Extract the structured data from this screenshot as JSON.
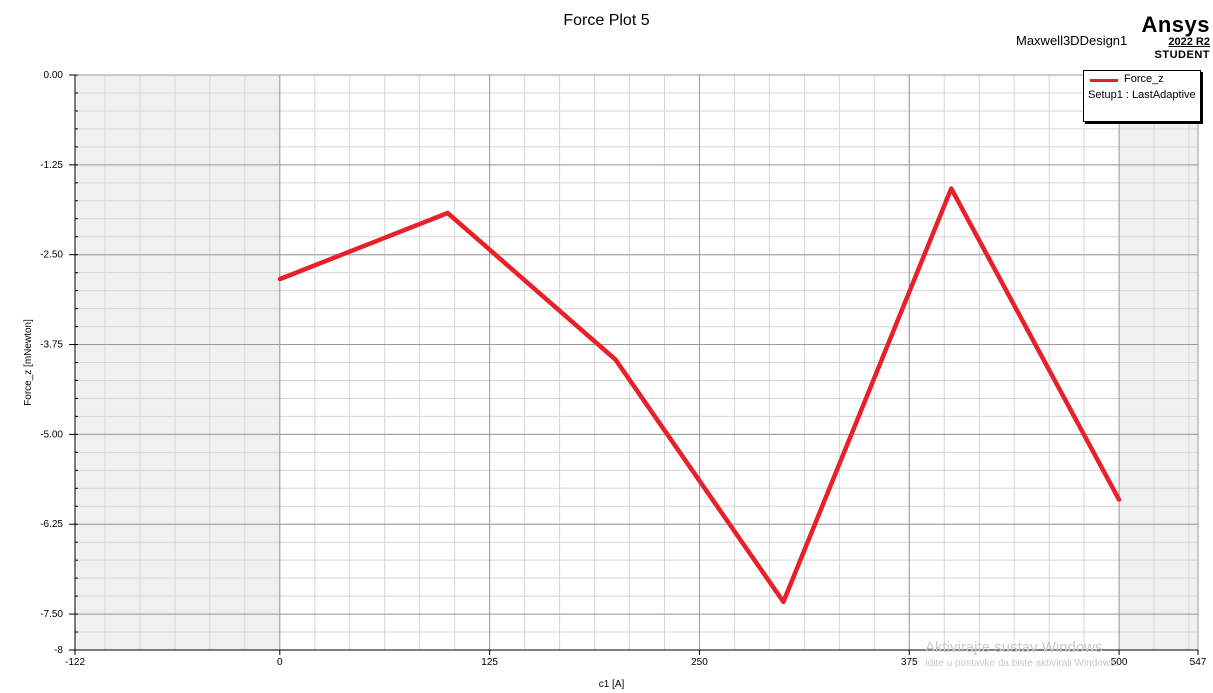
{
  "header": {
    "title": "Force Plot 5",
    "design_name": "Maxwell3DDesign1",
    "brand": "Ansys",
    "version": "2022 R2",
    "license": "STUDENT"
  },
  "legend": {
    "series_name": "Force_z",
    "setup": "Setup1 : LastAdaptive"
  },
  "watermark": {
    "line1": "Aktivirajte sustav Windows",
    "line2": "Idite u postavke da biste aktivirali Windows."
  },
  "chart_data": {
    "type": "line",
    "title": "Force Plot 5",
    "xlabel": "c1 [A]",
    "ylabel": "Force_z [mNewton]",
    "xlim": [
      -122,
      547
    ],
    "ylim": [
      -8,
      0
    ],
    "x_ticks": [
      "-122",
      "0",
      "125",
      "250",
      "375",
      "500",
      "547"
    ],
    "x_tick_values": [
      -122,
      0,
      125,
      250,
      375,
      500,
      547
    ],
    "y_ticks": [
      "0.00",
      "-1.25",
      "-2.50",
      "-3.75",
      "-5.00",
      "-6.25",
      "-7.50",
      "-8"
    ],
    "y_tick_values": [
      0,
      -1.25,
      -2.5,
      -3.75,
      -5,
      -6.25,
      -7.5,
      -8
    ],
    "data_range": [
      0,
      500
    ],
    "grid": true,
    "legend_position": "top-right",
    "series": [
      {
        "name": "Force_z",
        "color": "#e8202a",
        "x": [
          0,
          100,
          200,
          300,
          400,
          500
        ],
        "y": [
          -2.84,
          -1.92,
          -3.96,
          -7.33,
          -1.58,
          -5.91
        ]
      }
    ]
  }
}
